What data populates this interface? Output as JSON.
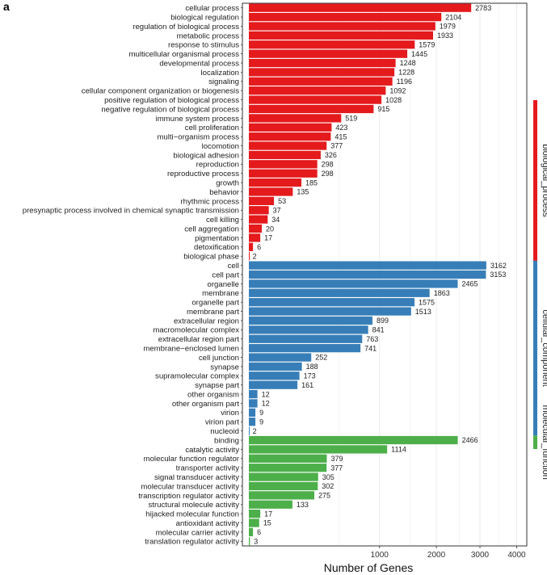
{
  "panel_label": "a",
  "chart_data": {
    "type": "bar",
    "orientation": "horizontal",
    "xlabel": "Number of Genes",
    "x_scale": "sqrt",
    "xlim": [
      0,
      4300
    ],
    "x_ticks": [
      1000,
      2000,
      3000,
      4000
    ],
    "grid": true,
    "groups": [
      {
        "name": "biological_process",
        "color": "#e41a1c",
        "categories": [
          "cellular process",
          "biological regulation",
          "regulation of biological process",
          "metabolic process",
          "response to stimulus",
          "multicellular organismal process",
          "developmental process",
          "localization",
          "signaling",
          "cellular component organization or biogenesis",
          "positive regulation of biological process",
          "negative regulation of biological process",
          "immune system process",
          "cell proliferation",
          "multi−organism process",
          "locomotion",
          "biological adhesion",
          "reproduction",
          "reproductive process",
          "growth",
          "behavior",
          "rhythmic process",
          "presynaptic process involved in chemical synaptic transmission",
          "cell killing",
          "cell aggregation",
          "pigmentation",
          "detoxification",
          "biological phase"
        ],
        "values": [
          2783,
          2104,
          1979,
          1933,
          1579,
          1445,
          1248,
          1228,
          1196,
          1092,
          1028,
          915,
          519,
          423,
          415,
          377,
          326,
          298,
          298,
          185,
          135,
          53,
          37,
          34,
          20,
          17,
          6,
          2
        ]
      },
      {
        "name": "cellular_component",
        "color": "#377eb8",
        "categories": [
          "cell",
          "cell part",
          "organelle",
          "membrane",
          "organelle part",
          "membrane part",
          "extracellular region",
          "macromolecular complex",
          "extracellular region part",
          "membrane−enclosed lumen",
          "cell junction",
          "synapse",
          "supramolecular complex",
          "synapse part",
          "other organism",
          "other organism part",
          "virion",
          "virion part",
          "nucleoid"
        ],
        "values": [
          3162,
          3153,
          2465,
          1863,
          1575,
          1513,
          899,
          841,
          763,
          741,
          252,
          188,
          173,
          161,
          12,
          12,
          9,
          9,
          2
        ]
      },
      {
        "name": "molecular_function",
        "color": "#4daf4a",
        "categories": [
          "binding",
          "catalytic activity",
          "molecular function regulator",
          "transporter activity",
          "signal transducer activity",
          "molecular transducer activity",
          "transcription regulator activity",
          "structural molecule activity",
          "hijacked molecular function",
          "antioxidant activity",
          "molecular carrier activity",
          "translation regulator activity"
        ],
        "values": [
          2466,
          1114,
          379,
          377,
          305,
          302,
          275,
          133,
          17,
          15,
          6,
          3
        ]
      }
    ]
  }
}
